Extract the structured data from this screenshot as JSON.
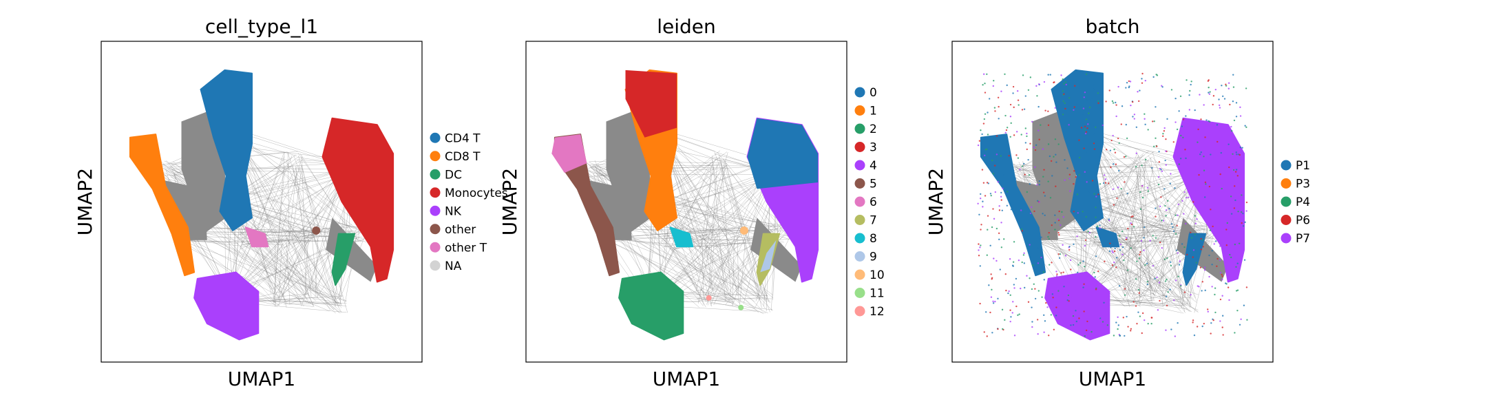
{
  "chart_data": [
    {
      "type": "scatter",
      "title": "cell_type_l1",
      "xlabel": "UMAP1",
      "ylabel": "UMAP2",
      "legend_position": "right",
      "grid": false,
      "ticks": false,
      "legend": [
        {
          "label": "CD4 T",
          "color": "#1f77b4"
        },
        {
          "label": "CD8 T",
          "color": "#ff7f0e"
        },
        {
          "label": "DC",
          "color": "#279e68"
        },
        {
          "label": "Monocytes",
          "color": "#d62728"
        },
        {
          "label": "NK",
          "color": "#aa40fc"
        },
        {
          "label": "other",
          "color": "#8c564b"
        },
        {
          "label": "other T",
          "color": "#e377c2"
        },
        {
          "label": "NA",
          "color": "#d3d3d3"
        }
      ]
    },
    {
      "type": "scatter",
      "title": "leiden",
      "xlabel": "UMAP1",
      "ylabel": "UMAP2",
      "legend_position": "right",
      "grid": false,
      "ticks": false,
      "legend": [
        {
          "label": "0",
          "color": "#1f77b4"
        },
        {
          "label": "1",
          "color": "#ff7f0e"
        },
        {
          "label": "2",
          "color": "#279e68"
        },
        {
          "label": "3",
          "color": "#d62728"
        },
        {
          "label": "4",
          "color": "#aa40fc"
        },
        {
          "label": "5",
          "color": "#8c564b"
        },
        {
          "label": "6",
          "color": "#e377c2"
        },
        {
          "label": "7",
          "color": "#b5bd61"
        },
        {
          "label": "8",
          "color": "#17becf"
        },
        {
          "label": "9",
          "color": "#aec7e8"
        },
        {
          "label": "10",
          "color": "#ffbb78"
        },
        {
          "label": "11",
          "color": "#98df8a"
        },
        {
          "label": "12",
          "color": "#ff9896"
        }
      ]
    },
    {
      "type": "scatter",
      "title": "batch",
      "xlabel": "UMAP1",
      "ylabel": "UMAP2",
      "legend_position": "right",
      "grid": false,
      "ticks": false,
      "legend": [
        {
          "label": "P1",
          "color": "#1f77b4"
        },
        {
          "label": "P3",
          "color": "#ff7f0e"
        },
        {
          "label": "P4",
          "color": "#279e68"
        },
        {
          "label": "P6",
          "color": "#d62728"
        },
        {
          "label": "P7",
          "color": "#aa40fc"
        }
      ]
    }
  ]
}
